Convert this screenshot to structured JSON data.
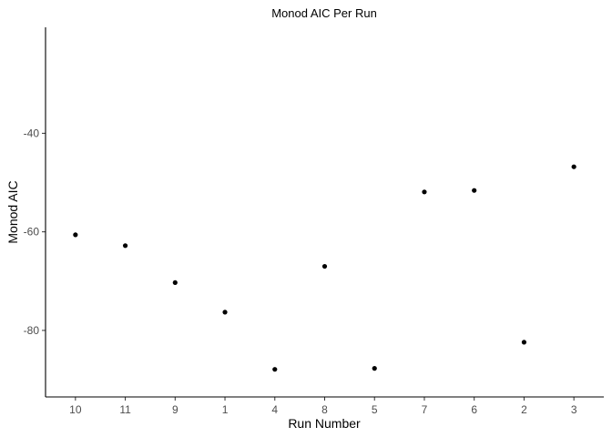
{
  "chart_data": {
    "type": "scatter",
    "title": "Monod AIC Per Run",
    "xlabel": "Run Number",
    "ylabel": "Monod AIC",
    "categories": [
      "10",
      "11",
      "9",
      "1",
      "4",
      "8",
      "5",
      "7",
      "6",
      "2",
      "3"
    ],
    "values": [
      -60.6,
      -62.8,
      -70.3,
      -76.3,
      -87.9,
      -67.0,
      -87.7,
      -51.9,
      -51.6,
      -82.4,
      -46.8
    ],
    "ylim": [
      -93.5,
      -18.5
    ],
    "yticks": [
      -80,
      -60,
      -40
    ],
    "ytick_labels": [
      "-80",
      "-60",
      "-40"
    ],
    "grid": false,
    "legend": "none"
  }
}
